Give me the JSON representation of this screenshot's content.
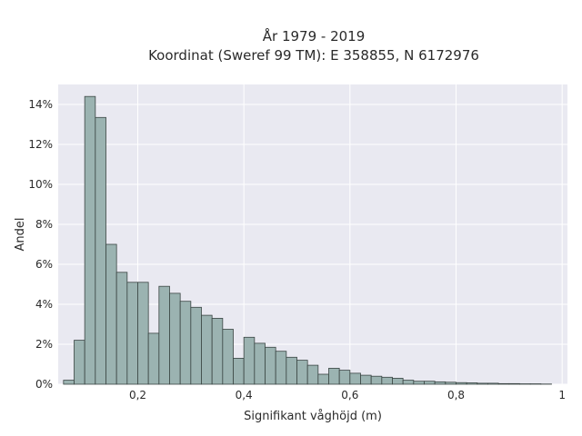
{
  "chart_data": {
    "type": "bar",
    "title_line1": "År 1979 - 2019",
    "title_line2": "Koordinat (Sweref 99 TM): E 358855, N 6172976",
    "xlabel": "Signifikant våghöjd (m)",
    "ylabel": "Andel",
    "x_ticks": [
      "0,2",
      "0,4",
      "0,6",
      "0,8",
      "1"
    ],
    "x_tick_values": [
      0.2,
      0.4,
      0.6,
      0.8,
      1.0
    ],
    "y_ticks": [
      "0%",
      "2%",
      "4%",
      "6%",
      "8%",
      "10%",
      "12%",
      "14%"
    ],
    "y_tick_values": [
      0,
      2,
      4,
      6,
      8,
      10,
      12,
      14
    ],
    "xlim": [
      0.05,
      1.01
    ],
    "ylim": [
      0,
      15
    ],
    "bin_width": 0.02,
    "bin_starts": [
      0.06,
      0.08,
      0.1,
      0.12,
      0.14,
      0.16,
      0.18,
      0.2,
      0.22,
      0.24,
      0.26,
      0.28,
      0.3,
      0.32,
      0.34,
      0.36,
      0.38,
      0.4,
      0.42,
      0.44,
      0.46,
      0.48,
      0.5,
      0.52,
      0.54,
      0.56,
      0.58,
      0.6,
      0.62,
      0.64,
      0.66,
      0.68,
      0.7,
      0.72,
      0.74,
      0.76,
      0.78,
      0.8,
      0.82,
      0.84,
      0.86,
      0.88,
      0.9,
      0.92,
      0.94,
      0.96
    ],
    "values": [
      0.2,
      2.2,
      14.4,
      13.35,
      7.0,
      5.6,
      5.1,
      5.1,
      2.55,
      4.9,
      4.55,
      4.15,
      3.85,
      3.45,
      3.3,
      2.75,
      1.3,
      2.35,
      2.05,
      1.85,
      1.65,
      1.35,
      1.2,
      0.95,
      0.5,
      0.8,
      0.7,
      0.55,
      0.45,
      0.4,
      0.35,
      0.3,
      0.2,
      0.15,
      0.15,
      0.12,
      0.1,
      0.08,
      0.07,
      0.05,
      0.05,
      0.03,
      0.03,
      0.02,
      0.02,
      0.01
    ],
    "bar_color": "#9bb3b1",
    "bar_edge_color": "#3a4543",
    "plot_bg": "#e9e9f1",
    "grid": true,
    "grid_color": "#ffffff"
  }
}
